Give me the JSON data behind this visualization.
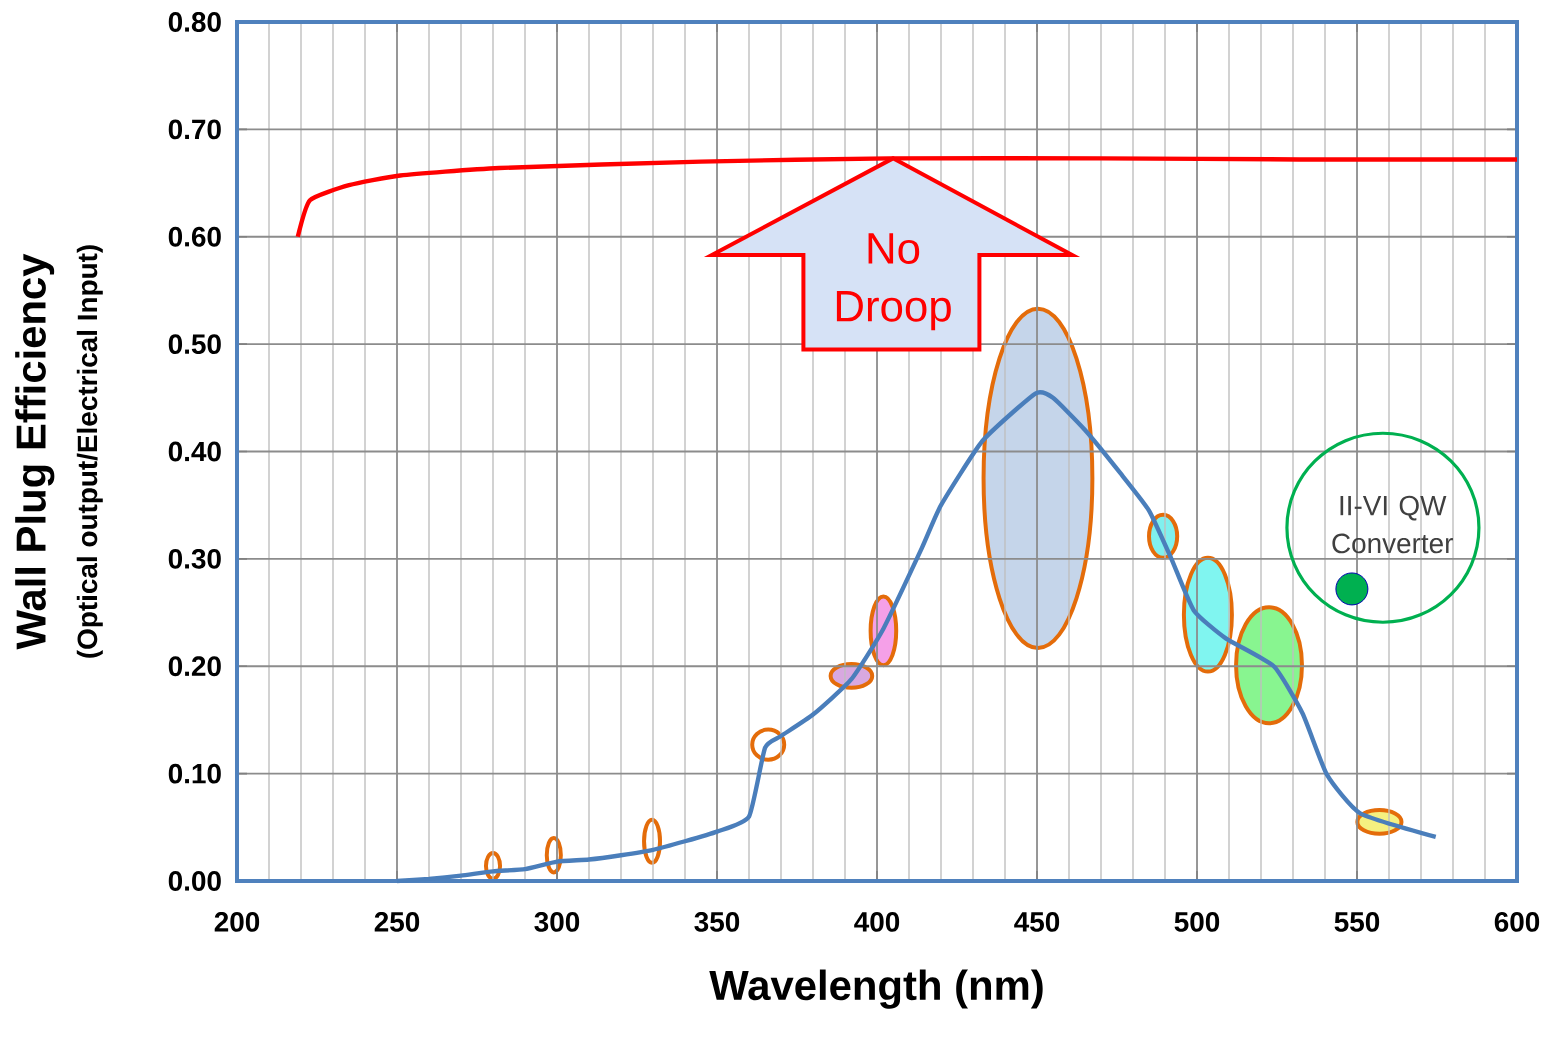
{
  "chart_data": {
    "type": "line",
    "xlabel": "Wavelength (nm)",
    "ylabel": "Wall Plug Efficiency",
    "annotations": [
      "(Optical output/Electrical Input)",
      {
        "text": "No Droop",
        "x": 405,
        "y": 0.673
      },
      {
        "text": "II-VI QW Converter",
        "x": 548.4,
        "y": 0.272
      }
    ],
    "xlim": [
      200,
      600
    ],
    "ylim": [
      0,
      0.8
    ],
    "xticks": [
      200,
      250,
      300,
      350,
      400,
      450,
      500,
      550,
      600
    ],
    "yticks": [
      {
        "value": 0,
        "label": "0.00"
      },
      {
        "value": 0.1,
        "label": "0.10"
      },
      {
        "value": 0.2,
        "label": "0.20"
      },
      {
        "value": 0.3,
        "label": "0.30"
      },
      {
        "value": 0.4,
        "label": "0.40"
      },
      {
        "value": 0.5,
        "label": "0.50"
      },
      {
        "value": 0.6,
        "label": "0.60"
      },
      {
        "value": 0.7,
        "label": "0.70"
      },
      {
        "value": 0.8,
        "label": "0.80"
      }
    ],
    "grid": true,
    "series": [
      {
        "color": "#4a7ebb",
        "x": [
          250,
          260,
          270,
          280,
          290,
          300,
          310,
          320,
          330,
          340,
          350,
          360,
          365,
          370,
          380,
          392,
          402,
          414,
          420,
          433,
          449.5,
          455,
          465,
          476,
          485,
          492,
          499,
          509,
          524,
          533,
          540.6,
          551,
          574.6
        ],
        "values": [
          0.0,
          0.002,
          0.005,
          0.009,
          0.011,
          0.018,
          0.02,
          0.024,
          0.029,
          0.037,
          0.046,
          0.06,
          0.124,
          0.135,
          0.155,
          0.188,
          0.235,
          0.31,
          0.35,
          0.41,
          0.454,
          0.45,
          0.42,
          0.38,
          0.345,
          0.3,
          0.252,
          0.226,
          0.2,
          0.156,
          0.099,
          0.063,
          0.041
        ]
      },
      {
        "color": "#ff0000",
        "x": [
          219,
          222.8,
          235,
          251,
          282,
          345,
          404,
          470,
          532,
          600
        ],
        "values": [
          0.6,
          0.634,
          0.648,
          0.657,
          0.664,
          0.67,
          0.673,
          0.673,
          0.672,
          0.672
        ]
      },
      {
        "type": "scatter",
        "color": "#00b050",
        "x": [
          548.4
        ],
        "values": [
          0.272
        ]
      }
    ]
  }
}
